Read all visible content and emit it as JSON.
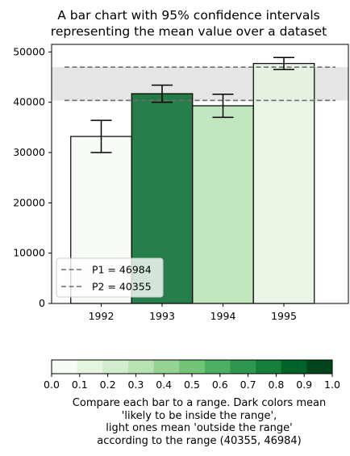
{
  "chart_data": {
    "type": "bar",
    "title_lines": [
      "A bar chart with 95% confidence intervals",
      "representing the mean value over a dataset"
    ],
    "categories": [
      "1992",
      "1993",
      "1994",
      "1995"
    ],
    "values": [
      33200,
      41700,
      39300,
      47700
    ],
    "errors": [
      3200,
      1700,
      2300,
      1200
    ],
    "bar_colors": [
      "#f7fcf5",
      "#00692a",
      "#b7e2b1",
      "#e5f5e0"
    ],
    "ylim": [
      0,
      51500
    ],
    "yticks": [
      0,
      10000,
      20000,
      30000,
      40000,
      50000
    ],
    "range": {
      "low": 40355,
      "high": 46984
    },
    "shade_color": "#e5e5e5",
    "line_color": "#6e6e6e",
    "grid": false,
    "legend": {
      "placement": "lower-left",
      "entries": [
        "P1 = 46984",
        "P2 = 40355"
      ]
    },
    "colorbar": {
      "ticks": [
        "0.0",
        "0.1",
        "0.2",
        "0.3",
        "0.4",
        "0.5",
        "0.6",
        "0.7",
        "0.8",
        "0.9",
        "1.0"
      ],
      "colors": [
        "#f7fcf5",
        "#e5f5e0",
        "#d1edcb",
        "#b7e2b1",
        "#97d494",
        "#73c378",
        "#4daf62",
        "#2f974e",
        "#157f3b",
        "#006428",
        "#00441b"
      ],
      "caption_lines": [
        "Compare each bar to a range. Dark colors mean",
        "'likely to be inside the range',",
        "light ones mean 'outside the range'",
        "according to the range (40355, 46984)"
      ]
    }
  }
}
